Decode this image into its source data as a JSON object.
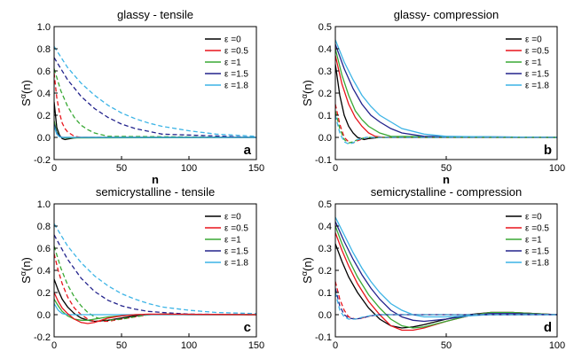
{
  "figure": {
    "colors": {
      "eps0": "#000000",
      "eps0.5": "#e8141c",
      "eps1": "#3aa935",
      "eps1.5": "#23238c",
      "eps1.8": "#3cb4e6"
    }
  },
  "chart_data": [
    {
      "type": "line",
      "title": "glassy - tensile",
      "panel_label": "a",
      "xlabel": "n",
      "ylabel_main": "S",
      "ylabel_sup": "α",
      "ylabel_tail": "(n)",
      "xlim": [
        0,
        150
      ],
      "ylim": [
        -0.2,
        1.0
      ],
      "xticks": [
        "0",
        "50",
        "100",
        "150"
      ],
      "yticks": [
        "-0.2",
        "0.0",
        "0.2",
        "0.4",
        "0.6",
        "0.8",
        "1.0"
      ],
      "legend_position": "top-right",
      "series": [
        {
          "name": "ε =0",
          "color": "#000000",
          "style": "solid",
          "x": [
            0,
            2,
            4,
            6,
            8,
            10,
            15,
            20,
            150
          ],
          "y": [
            0.32,
            0.09,
            0.02,
            -0.01,
            -0.02,
            -0.015,
            -0.005,
            0.0,
            0.0
          ]
        },
        {
          "name": "ε =0.5",
          "color": "#e8141c",
          "style": "dashed",
          "x": [
            0,
            2,
            4,
            6,
            8,
            10,
            15,
            20,
            30,
            150
          ],
          "y": [
            0.58,
            0.36,
            0.22,
            0.13,
            0.08,
            0.05,
            0.01,
            0.0,
            0.0,
            0.0
          ]
        },
        {
          "name": "ε =1",
          "color": "#3aa935",
          "style": "dashed",
          "x": [
            0,
            5,
            10,
            15,
            20,
            25,
            30,
            40,
            150
          ],
          "y": [
            0.62,
            0.42,
            0.28,
            0.18,
            0.11,
            0.07,
            0.04,
            0.01,
            0.0
          ]
        },
        {
          "name": "ε =1.5",
          "color": "#23238c",
          "style": "dashed",
          "x": [
            0,
            10,
            20,
            30,
            40,
            50,
            60,
            80,
            150
          ],
          "y": [
            0.72,
            0.52,
            0.37,
            0.26,
            0.18,
            0.12,
            0.08,
            0.03,
            0.0
          ]
        },
        {
          "name": "ε =1.8",
          "color": "#3cb4e6",
          "style": "dashed",
          "x": [
            0,
            10,
            20,
            30,
            40,
            50,
            60,
            70,
            80,
            100,
            120,
            150
          ],
          "y": [
            0.82,
            0.63,
            0.49,
            0.38,
            0.29,
            0.22,
            0.17,
            0.13,
            0.1,
            0.06,
            0.03,
            0.01
          ]
        },
        {
          "name": "",
          "color": "#3aa935",
          "style": "solid",
          "x": [
            0,
            2,
            4,
            6,
            8,
            150
          ],
          "y": [
            0.15,
            0.05,
            0.01,
            0.0,
            -0.005,
            0.0
          ]
        },
        {
          "name": "",
          "color": "#23238c",
          "style": "solid",
          "x": [
            0,
            2,
            4,
            6,
            150
          ],
          "y": [
            0.12,
            0.04,
            0.01,
            0.0,
            0.0
          ]
        },
        {
          "name": "",
          "color": "#3cb4e6",
          "style": "solid",
          "x": [
            0,
            2,
            4,
            6,
            150
          ],
          "y": [
            0.1,
            0.03,
            0.005,
            0.0,
            0.0
          ]
        }
      ]
    },
    {
      "type": "line",
      "title": "glassy- compression",
      "panel_label": "b",
      "xlabel": "n",
      "ylabel_main": "S",
      "ylabel_sup": "α",
      "ylabel_tail": "(n)",
      "xlim": [
        0,
        100
      ],
      "ylim": [
        -0.1,
        0.5
      ],
      "xticks": [
        "0",
        "50",
        "100"
      ],
      "yticks": [
        "-0.1",
        "0.0",
        "0.1",
        "0.2",
        "0.3",
        "0.4",
        "0.5"
      ],
      "legend_position": "top-right",
      "series": [
        {
          "name": "ε =0",
          "color": "#000000",
          "style": "solid",
          "x": [
            0,
            2,
            4,
            6,
            8,
            10,
            13,
            15,
            20,
            100
          ],
          "y": [
            0.33,
            0.19,
            0.1,
            0.05,
            0.02,
            0.0,
            -0.01,
            -0.005,
            0.0,
            0.0
          ]
        },
        {
          "name": "ε =0.5",
          "color": "#e8141c",
          "style": "solid",
          "x": [
            0,
            3,
            6,
            9,
            12,
            15,
            18,
            22,
            100
          ],
          "y": [
            0.37,
            0.24,
            0.15,
            0.09,
            0.05,
            0.02,
            0.005,
            0.0,
            0.0
          ]
        },
        {
          "name": "ε =1",
          "color": "#3aa935",
          "style": "solid",
          "x": [
            0,
            3,
            6,
            9,
            12,
            15,
            20,
            25,
            100
          ],
          "y": [
            0.4,
            0.28,
            0.19,
            0.12,
            0.08,
            0.05,
            0.02,
            0.005,
            0.0
          ]
        },
        {
          "name": "ε =1.5",
          "color": "#23238c",
          "style": "solid",
          "x": [
            0,
            4,
            8,
            12,
            16,
            20,
            25,
            30,
            40,
            100
          ],
          "y": [
            0.42,
            0.31,
            0.22,
            0.15,
            0.1,
            0.07,
            0.04,
            0.02,
            0.005,
            0.0
          ]
        },
        {
          "name": "ε =1.8",
          "color": "#3cb4e6",
          "style": "solid",
          "x": [
            0,
            4,
            8,
            12,
            16,
            20,
            25,
            30,
            40,
            50,
            100
          ],
          "y": [
            0.44,
            0.34,
            0.26,
            0.19,
            0.14,
            0.1,
            0.07,
            0.04,
            0.015,
            0.005,
            0.0
          ]
        },
        {
          "name": "",
          "color": "#e8141c",
          "style": "dashed",
          "x": [
            0,
            2,
            4,
            6,
            8,
            10,
            14,
            100
          ],
          "y": [
            0.15,
            0.06,
            0.0,
            -0.02,
            -0.025,
            -0.015,
            0.0,
            0.0
          ]
        },
        {
          "name": "",
          "color": "#3aa935",
          "style": "dashed",
          "x": [
            0,
            2,
            4,
            6,
            8,
            10,
            14,
            100
          ],
          "y": [
            0.12,
            0.04,
            -0.01,
            -0.025,
            -0.02,
            -0.01,
            0.0,
            0.0
          ]
        },
        {
          "name": "",
          "color": "#3cb4e6",
          "style": "dashed",
          "x": [
            0,
            2,
            4,
            6,
            8,
            10,
            14,
            100
          ],
          "y": [
            0.1,
            0.02,
            -0.02,
            -0.03,
            -0.025,
            -0.01,
            0.0,
            0.0
          ]
        }
      ]
    },
    {
      "type": "line",
      "title": "semicrystalline - tensile",
      "panel_label": "c",
      "xlabel": "n",
      "ylabel_main": "S",
      "ylabel_sup": "α",
      "ylabel_tail": "(n)",
      "xlim": [
        0,
        150
      ],
      "ylim": [
        -0.2,
        1.0
      ],
      "xticks": [
        "0",
        "50",
        "100",
        "150"
      ],
      "yticks": [
        "-0.2",
        "0.0",
        "0.2",
        "0.4",
        "0.6",
        "0.8",
        "1.0"
      ],
      "legend_position": "top-right",
      "series": [
        {
          "name": "ε =0",
          "color": "#000000",
          "style": "solid",
          "x": [
            0,
            3,
            6,
            10,
            15,
            20,
            25,
            30,
            40,
            50,
            60,
            70,
            80,
            100,
            150
          ],
          "y": [
            0.32,
            0.22,
            0.14,
            0.07,
            0.01,
            -0.03,
            -0.05,
            -0.06,
            -0.05,
            -0.03,
            -0.01,
            0.0,
            0.005,
            0.0,
            0.0
          ]
        },
        {
          "name": "ε =0.5",
          "color": "#e8141c",
          "style": "dashed",
          "x": [
            0,
            3,
            6,
            10,
            15,
            20,
            25,
            30,
            40,
            50,
            60,
            70,
            80,
            150
          ],
          "y": [
            0.55,
            0.4,
            0.28,
            0.16,
            0.06,
            0.0,
            -0.04,
            -0.06,
            -0.06,
            -0.04,
            -0.02,
            0.0,
            0.005,
            0.0
          ]
        },
        {
          "name": "ε =1",
          "color": "#3aa935",
          "style": "dashed",
          "x": [
            0,
            5,
            10,
            15,
            20,
            25,
            30,
            35,
            40,
            50,
            60,
            70,
            80,
            150
          ],
          "y": [
            0.62,
            0.42,
            0.27,
            0.16,
            0.08,
            0.02,
            -0.02,
            -0.04,
            -0.05,
            -0.04,
            -0.02,
            0.0,
            0.005,
            0.0
          ]
        },
        {
          "name": "ε =1.5",
          "color": "#23238c",
          "style": "dashed",
          "x": [
            0,
            10,
            20,
            30,
            40,
            50,
            60,
            70,
            80,
            100,
            150
          ],
          "y": [
            0.72,
            0.5,
            0.33,
            0.21,
            0.13,
            0.08,
            0.05,
            0.03,
            0.02,
            0.005,
            0.0
          ]
        },
        {
          "name": "ε =1.8",
          "color": "#3cb4e6",
          "style": "dashed",
          "x": [
            0,
            10,
            20,
            30,
            40,
            50,
            60,
            70,
            80,
            100,
            120,
            150
          ],
          "y": [
            0.82,
            0.62,
            0.47,
            0.35,
            0.26,
            0.19,
            0.14,
            0.1,
            0.07,
            0.04,
            0.02,
            0.01
          ]
        },
        {
          "name": "",
          "color": "#3aa935",
          "style": "solid",
          "x": [
            0,
            3,
            6,
            10,
            15,
            20,
            25,
            30,
            40,
            50,
            60,
            70,
            150
          ],
          "y": [
            0.14,
            0.08,
            0.03,
            -0.01,
            -0.04,
            -0.05,
            -0.05,
            -0.04,
            -0.02,
            -0.01,
            0.0,
            0.0,
            0.0
          ]
        },
        {
          "name": "",
          "color": "#3cb4e6",
          "style": "solid",
          "x": [
            0,
            3,
            6,
            10,
            150
          ],
          "y": [
            0.1,
            0.04,
            0.01,
            0.0,
            0.0
          ]
        },
        {
          "name": "",
          "color": "#e8141c",
          "style": "solid",
          "x": [
            0,
            3,
            6,
            10,
            15,
            20,
            25,
            30,
            35,
            40,
            50,
            60,
            70,
            150
          ],
          "y": [
            0.2,
            0.12,
            0.06,
            0.01,
            -0.04,
            -0.07,
            -0.08,
            -0.07,
            -0.05,
            -0.03,
            -0.01,
            0.0,
            0.005,
            0.0
          ]
        }
      ]
    },
    {
      "type": "line",
      "title": "semicrystalline - compression",
      "panel_label": "d",
      "xlabel": "n",
      "ylabel_main": "S",
      "ylabel_sup": "α",
      "ylabel_tail": "(n)",
      "xlim": [
        0,
        100
      ],
      "ylim": [
        -0.1,
        0.5
      ],
      "xticks": [
        "0",
        "50",
        "100"
      ],
      "yticks": [
        "-0.1",
        "0.0",
        "0.1",
        "0.2",
        "0.3",
        "0.4",
        "0.5"
      ],
      "legend_position": "top-right",
      "series": [
        {
          "name": "ε =0",
          "color": "#000000",
          "style": "solid",
          "x": [
            0,
            3,
            6,
            10,
            15,
            20,
            25,
            30,
            35,
            40,
            50,
            60,
            70,
            80,
            90,
            100
          ],
          "y": [
            0.32,
            0.24,
            0.17,
            0.1,
            0.03,
            -0.02,
            -0.05,
            -0.06,
            -0.055,
            -0.045,
            -0.02,
            0.0,
            0.01,
            0.01,
            0.005,
            0.0
          ]
        },
        {
          "name": "ε =0.5",
          "color": "#e8141c",
          "style": "solid",
          "x": [
            0,
            3,
            6,
            10,
            15,
            20,
            25,
            30,
            35,
            40,
            50,
            60,
            70,
            80,
            90,
            100
          ],
          "y": [
            0.37,
            0.29,
            0.22,
            0.14,
            0.06,
            0.0,
            -0.05,
            -0.07,
            -0.07,
            -0.06,
            -0.03,
            -0.005,
            0.01,
            0.01,
            0.005,
            0.0
          ]
        },
        {
          "name": "ε =1",
          "color": "#3aa935",
          "style": "solid",
          "x": [
            0,
            3,
            6,
            10,
            15,
            20,
            25,
            30,
            35,
            40,
            50,
            60,
            70,
            80,
            100
          ],
          "y": [
            0.4,
            0.32,
            0.25,
            0.17,
            0.09,
            0.03,
            -0.02,
            -0.05,
            -0.06,
            -0.055,
            -0.03,
            -0.005,
            0.01,
            0.01,
            0.0
          ]
        },
        {
          "name": "ε =1.5",
          "color": "#23238c",
          "style": "solid",
          "x": [
            0,
            4,
            8,
            12,
            16,
            20,
            25,
            30,
            35,
            40,
            50,
            60,
            70,
            80,
            100
          ],
          "y": [
            0.42,
            0.33,
            0.25,
            0.18,
            0.12,
            0.07,
            0.02,
            -0.01,
            -0.025,
            -0.03,
            -0.02,
            -0.005,
            0.005,
            0.005,
            0.0
          ]
        },
        {
          "name": "ε =1.8",
          "color": "#3cb4e6",
          "style": "solid",
          "x": [
            0,
            4,
            8,
            12,
            16,
            20,
            25,
            30,
            35,
            40,
            50,
            60,
            70,
            100
          ],
          "y": [
            0.44,
            0.36,
            0.28,
            0.21,
            0.15,
            0.1,
            0.05,
            0.02,
            0.0,
            -0.01,
            -0.01,
            -0.005,
            0.0,
            0.0
          ]
        },
        {
          "name": "",
          "color": "#e8141c",
          "style": "dashed",
          "x": [
            0,
            2,
            4,
            6,
            9,
            12,
            16,
            20,
            100
          ],
          "y": [
            0.15,
            0.07,
            0.02,
            -0.01,
            -0.02,
            -0.015,
            -0.005,
            0.0,
            0.0
          ]
        },
        {
          "name": "",
          "color": "#23238c",
          "style": "dashed",
          "x": [
            0,
            2,
            4,
            6,
            9,
            12,
            16,
            20,
            100
          ],
          "y": [
            0.12,
            0.04,
            0.0,
            -0.015,
            -0.02,
            -0.015,
            -0.005,
            0.0,
            0.0
          ]
        },
        {
          "name": "",
          "color": "#3cb4e6",
          "style": "dashed",
          "x": [
            0,
            2,
            4,
            6,
            9,
            12,
            16,
            20,
            100
          ],
          "y": [
            0.1,
            0.02,
            -0.01,
            -0.02,
            -0.02,
            -0.012,
            -0.004,
            0.0,
            0.0
          ]
        }
      ]
    }
  ]
}
